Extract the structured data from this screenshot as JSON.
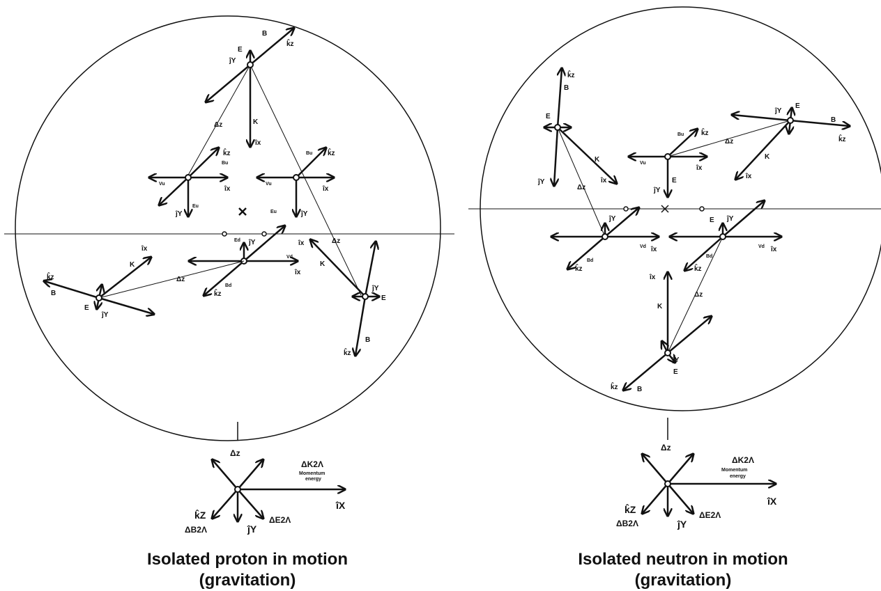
{
  "proton": {
    "caption_line1": "Isolated proton in motion",
    "caption_line2": "(gravitation)",
    "labels": {
      "E": "E",
      "B": "B",
      "K": "K",
      "dz": "Δz",
      "kz": "k̂z",
      "jy": "ĵY",
      "ix": "îx",
      "Bu": "Bu",
      "Eu": "Eu",
      "Vu": "Vu",
      "Ed": "Ed",
      "Bd": "Bd",
      "Vd": "Vd"
    }
  },
  "neutron": {
    "caption_line1": "Isolated neutron in motion",
    "caption_line2": "(gravitation)",
    "labels": {
      "E": "E",
      "B": "B",
      "K": "K",
      "dz": "Δz",
      "kz": "k̂z",
      "jy": "ĵY",
      "ix": "îx",
      "Bu": "Bu",
      "Vu": "Vu",
      "Bd": "Bd",
      "Vd": "Vd"
    }
  },
  "legend": {
    "dz": "Δz",
    "dK": "ΔK2Λ",
    "momentum": "Momentum",
    "energy": "energy",
    "ix": "îX",
    "kz": "k̂Z",
    "dB": "ΔB2Λ",
    "jy": "ĵY",
    "dE": "ΔE2Λ"
  },
  "colors": {
    "ink": "#111111",
    "background": "#ffffff"
  }
}
